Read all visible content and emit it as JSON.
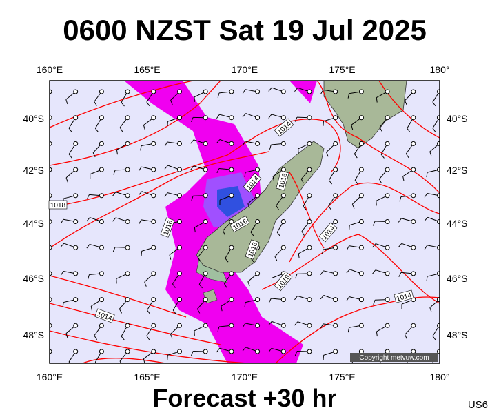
{
  "header": {
    "title": "0600 NZST Sat 19 Jul 2025"
  },
  "footer": {
    "forecast": "Forecast +30 hr",
    "code": "US6"
  },
  "map": {
    "copyright": "Copyright metvuw.com",
    "lon_labels": [
      "160°E",
      "165°E",
      "170°E",
      "175°E",
      "180°"
    ],
    "lat_labels": [
      "40°S",
      "42°S",
      "44°S",
      "46°S",
      "48°S"
    ],
    "isobar_labels": [
      "1014",
      "1014",
      "1016",
      "1018",
      "1016",
      "1016",
      "1016",
      "1014",
      "1018",
      "1014",
      "1014"
    ]
  }
}
